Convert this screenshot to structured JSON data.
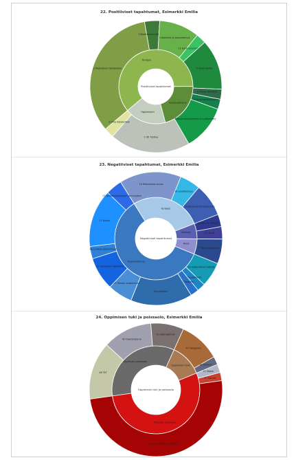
{
  "chart_data": [
    {
      "type": "sunburst",
      "title": "22. Positiiviset tapahtumat, Esimerkki Emilia",
      "center_label": "Positiiviset tapahtumat",
      "inner": [
        {
          "label": "Tunteet",
          "value": 61,
          "color": "#8db64e"
        },
        {
          "label": "Vuorovaikutus",
          "value": 21,
          "color": "#5e8d39"
        },
        {
          "label": "Oppiminen",
          "value": 18,
          "color": "#c3cec0"
        }
      ],
      "outer": [
        {
          "label": "2 Motivoinen työskentely",
          "value": 27,
          "color": "#7f9e46",
          "parent": "Tunteet"
        },
        {
          "label": "3 Myönteinen työskentely",
          "value": 3,
          "color": "#3e7a37",
          "parent": "Tunteet"
        },
        {
          "label": "4 Itsetunto ja itsetuntemus",
          "value": 8,
          "color": "#67b04a",
          "parent": "Tunteet"
        },
        {
          "label": "11 Hyvä vuorovaikutus",
          "value": 2,
          "color": "#3bc264",
          "parent": "Tunteet"
        },
        {
          "label": "5 Hyvä käytös",
          "value": 10,
          "color": "#1f8a3d",
          "parent": "Vuorovaikutus"
        },
        {
          "label": "12 Hyvä yhteistyö",
          "value": 2,
          "color": "#2e6b4b",
          "parent": "Vuorovaikutus"
        },
        {
          "label": "10 Hyvä keskittyminen",
          "value": 2,
          "color": "#15804c",
          "parent": "Vuorovaikutus"
        },
        {
          "label": "8 Hyvä keskittyminen ja työskentely",
          "value": 9,
          "color": "#149a48",
          "parent": "Vuorovaikutus"
        },
        {
          "label": "1 OK Tuntiva",
          "value": 16,
          "color": "#bcc1ba",
          "parent": "Oppiminen"
        },
        {
          "label": "3 Oma työskentely",
          "value": 2,
          "color": "#dfe5a1",
          "parent": "Oppiminen"
        }
      ],
      "inner_texts": [
        {
          "label": "Tunteet"
        },
        {
          "label": "Vuorovaikutus"
        }
      ],
      "ring_texts": [
        {
          "label": "2 Motivoinen työskentely"
        },
        {
          "label": "3 Myönteinen työskentely"
        },
        {
          "label": "4 Itsetunto ja itsetuntemus"
        },
        {
          "label": "11 Hyvä vuorovaikutus"
        },
        {
          "label": "5 Hyvä käytös"
        },
        {
          "label": "12 Hyvä yhteistyö"
        },
        {
          "label": "10 Hyvä keskittyminen"
        },
        {
          "label": "8 Hyvä keskittyminen ja työskentely"
        },
        {
          "label": "1 OK Tuntiva"
        },
        {
          "label": "3 Oma työskentely"
        },
        {
          "label": "Hyvä keskittyminen"
        }
      ]
    },
    {
      "type": "sunburst",
      "title": "23. Negatiiviset tapahtumat, Esimerkki Emilia",
      "center_label": "Negatiiviset tapahtumat",
      "inner": [
        {
          "label": "Tunteet",
          "value": 28,
          "color": "#a8c8e8"
        },
        {
          "label": "Kiertely",
          "value": 6,
          "color": "#5a5fb0"
        },
        {
          "label": "Muut",
          "value": 6,
          "color": "#8f8fd0"
        },
        {
          "label": "Vuorovaikutus",
          "value": 60,
          "color": "#3a78c0"
        }
      ],
      "outer": [
        {
          "label": "18 Motivaation puute",
          "value": 15,
          "color": "#7e95cc",
          "parent": "Tunteet"
        },
        {
          "label": "19 Levottomuus",
          "value": 5,
          "color": "#35b8e6",
          "parent": "Tunteet"
        },
        {
          "label": "20 Keskeytynyt oppiminen",
          "value": 8,
          "color": "#3c5fb3",
          "parent": "Tunteet"
        },
        {
          "label": "Kiertely ja välttely",
          "value": 3,
          "color": "#2e3a90",
          "parent": "Kiertely"
        },
        {
          "label": "21 Muut",
          "value": 3,
          "color": "#3e3f95",
          "parent": "Kiertely"
        },
        {
          "label": "27 Muu tapahtuma",
          "value": 6,
          "color": "#2b4a8e",
          "parent": "Muut"
        },
        {
          "label": "33 Epäasiallinen käytös",
          "value": 6,
          "color": "#149bb6",
          "parent": "Vuorovaikutus"
        },
        {
          "label": "36 Kiusaaminen",
          "value": 2,
          "color": "#1e84c8",
          "parent": "Vuorovaikutus"
        },
        {
          "label": "34 Tappelu",
          "value": 2,
          "color": "#2a6fc8",
          "parent": "Vuorovaikutus"
        },
        {
          "label": "28 Lyöminen",
          "value": 15,
          "color": "#2f6cac",
          "parent": "Vuorovaikutus"
        },
        {
          "label": "35 Toiseen koskeminen",
          "value": 6,
          "color": "#4a8fd6",
          "parent": "Vuorovaikutus"
        },
        {
          "label": "37 Sanallinen häiriköinti",
          "value": 8,
          "color": "#1463e0",
          "parent": "Vuorovaikutus"
        },
        {
          "label": "36 Luvaton poistuminen",
          "value": 3,
          "color": "#2f80d8",
          "parent": "Vuorovaikutus"
        },
        {
          "label": "17 Kiroilu",
          "value": 14,
          "color": "#1e90ff",
          "parent": "Vuorovaikutus"
        },
        {
          "label": "17 Tehtävien/ohjeiden laiminlyönti",
          "value": 4,
          "color": "#2d6ae8",
          "parent": "Vuorovaikutus"
        }
      ],
      "inner_texts": [
        {
          "label": "Tunteet"
        },
        {
          "label": "Kiertely"
        },
        {
          "label": "Muut"
        },
        {
          "label": "Vuorovaikutus"
        }
      ],
      "ring_texts": [
        {
          "label": "18 Motivaation puute"
        },
        {
          "label": "19 Levottomuus"
        },
        {
          "label": "20 Keskeytynyt oppiminen"
        },
        {
          "label": "Kiertely ja välttely"
        },
        {
          "label": "27 Muu tapahtuma"
        },
        {
          "label": "33 Epäasiallinen käytös"
        },
        {
          "label": "36 Kiusaaminen"
        },
        {
          "label": "34 Tappelu"
        },
        {
          "label": "28 Lyöminen"
        },
        {
          "label": "35 Toiseen koskeminen"
        },
        {
          "label": "37 Sanallinen häiriköinti"
        },
        {
          "label": "36 Luvaton poistuminen"
        },
        {
          "label": "17 Kiroilu"
        },
        {
          "label": "17 Tehtävien/ohjeiden laiminlyönti"
        }
      ]
    },
    {
      "type": "sunburst",
      "title": "24. Oppimisen tuki ja poissaolo, Esimerkki Emilia",
      "center_label": "Oppimisen tuki ja poissaolo",
      "inner": [
        {
          "label": "Syyllinen poissaolo",
          "value": 34,
          "color": "#6a6a6a"
        },
        {
          "label": "Oppimisen tuki",
          "value": 12,
          "color": "#a87b55"
        },
        {
          "label": "Pidempi poissaolo",
          "value": 54,
          "color": "#d41212"
        }
      ],
      "outer": [
        {
          "label": "46 TET",
          "value": 14,
          "color": "#c4c8a8",
          "parent": "Syyllinen poissaolo"
        },
        {
          "label": "45 Osaministerio",
          "value": 12,
          "color": "#a0a0ae",
          "parent": "Syyllinen poissaolo"
        },
        {
          "label": "32 Jatko-opinnot",
          "value": 8,
          "color": "#7a7070",
          "parent": "Syyllinen poissaolo"
        },
        {
          "label": "43 Tukiopetus",
          "value": 10,
          "color": "#a86a38",
          "parent": "Oppimisen tuki"
        },
        {
          "label": "44 Sairaus",
          "value": 2,
          "color": "#5f6a80",
          "parent": "Oppimisen tuki"
        },
        {
          "label": "41 Vapaa",
          "value": 2,
          "color": "#b0b8c8",
          "parent": "Syyllinen poissaolo"
        },
        {
          "label": "31 Sairaus",
          "value": 2,
          "color": "#cc4030",
          "parent": "Pidempi poissaolo"
        },
        {
          "label": "30 Lomaaikaan poissaolo",
          "value": 50,
          "color": "#a60404",
          "parent": "Pidempi poissaolo"
        }
      ],
      "inner_texts": [
        {
          "label": "Syyllinen poissaolo"
        },
        {
          "label": "Oppimisen tuki"
        },
        {
          "label": "Pidempi poissaolo"
        }
      ],
      "ring_texts": [
        {
          "label": "46 TET"
        },
        {
          "label": "45 Osaministerio"
        },
        {
          "label": "32 Jatko-opinnot"
        },
        {
          "label": "43 Tukiopetus"
        },
        {
          "label": "44 Sairaus"
        },
        {
          "label": "41 Vapaa"
        },
        {
          "label": "31 Sairaus"
        },
        {
          "label": "30 Lomaaikaan poissaolo"
        }
      ]
    }
  ]
}
